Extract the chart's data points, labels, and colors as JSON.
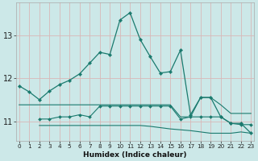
{
  "xlabel": "Humidex (Indice chaleur)",
  "bg_color": "#cce8e8",
  "grid_color": "#b8d8d8",
  "line_color": "#1a7a6e",
  "x_ticks": [
    0,
    1,
    2,
    3,
    4,
    5,
    6,
    7,
    8,
    9,
    10,
    11,
    12,
    13,
    14,
    15,
    16,
    17,
    18,
    19,
    20,
    21,
    22,
    23
  ],
  "y_ticks": [
    11,
    12,
    13
  ],
  "ylim": [
    10.55,
    13.75
  ],
  "xlim": [
    -0.3,
    23.3
  ],
  "line1_x": [
    0,
    1,
    2,
    3,
    4,
    5,
    6,
    7,
    8,
    9,
    10,
    11,
    12,
    13,
    14,
    15,
    16,
    17,
    18,
    19,
    20,
    21,
    22,
    23
  ],
  "line1_y": [
    11.82,
    11.68,
    11.5,
    11.7,
    11.85,
    11.95,
    12.1,
    12.35,
    12.6,
    12.55,
    13.35,
    13.52,
    12.9,
    12.5,
    12.12,
    12.15,
    12.65,
    11.15,
    11.55,
    11.55,
    11.1,
    10.95,
    10.95,
    10.72
  ],
  "line2_x": [
    0,
    1,
    2,
    3,
    4,
    5,
    6,
    7,
    8,
    9,
    10,
    11,
    12,
    13,
    14,
    15,
    16,
    17,
    18,
    19,
    20,
    21,
    22,
    23
  ],
  "line2_y": [
    11.38,
    11.38,
    11.38,
    11.38,
    11.38,
    11.38,
    11.38,
    11.38,
    11.38,
    11.38,
    11.38,
    11.38,
    11.38,
    11.38,
    11.38,
    11.38,
    11.1,
    11.1,
    11.55,
    11.55,
    11.38,
    11.18,
    11.18,
    11.18
  ],
  "line3_x": [
    2,
    3,
    4,
    5,
    6,
    7,
    8,
    9,
    10,
    11,
    12,
    13,
    14,
    15,
    16,
    17,
    18,
    19,
    20,
    21,
    22,
    23
  ],
  "line3_y": [
    11.05,
    11.05,
    11.1,
    11.1,
    11.15,
    11.1,
    11.35,
    11.35,
    11.35,
    11.35,
    11.35,
    11.35,
    11.35,
    11.35,
    11.05,
    11.1,
    11.1,
    11.1,
    11.1,
    10.95,
    10.92,
    10.92
  ],
  "line4_x": [
    2,
    3,
    4,
    5,
    6,
    7,
    8,
    9,
    10,
    11,
    12,
    13,
    14,
    15,
    16,
    17,
    18,
    19,
    20,
    21,
    22,
    23
  ],
  "line4_y": [
    10.9,
    10.9,
    10.9,
    10.9,
    10.9,
    10.9,
    10.9,
    10.9,
    10.9,
    10.9,
    10.9,
    10.88,
    10.85,
    10.82,
    10.8,
    10.78,
    10.75,
    10.72,
    10.72,
    10.72,
    10.75,
    10.72
  ]
}
